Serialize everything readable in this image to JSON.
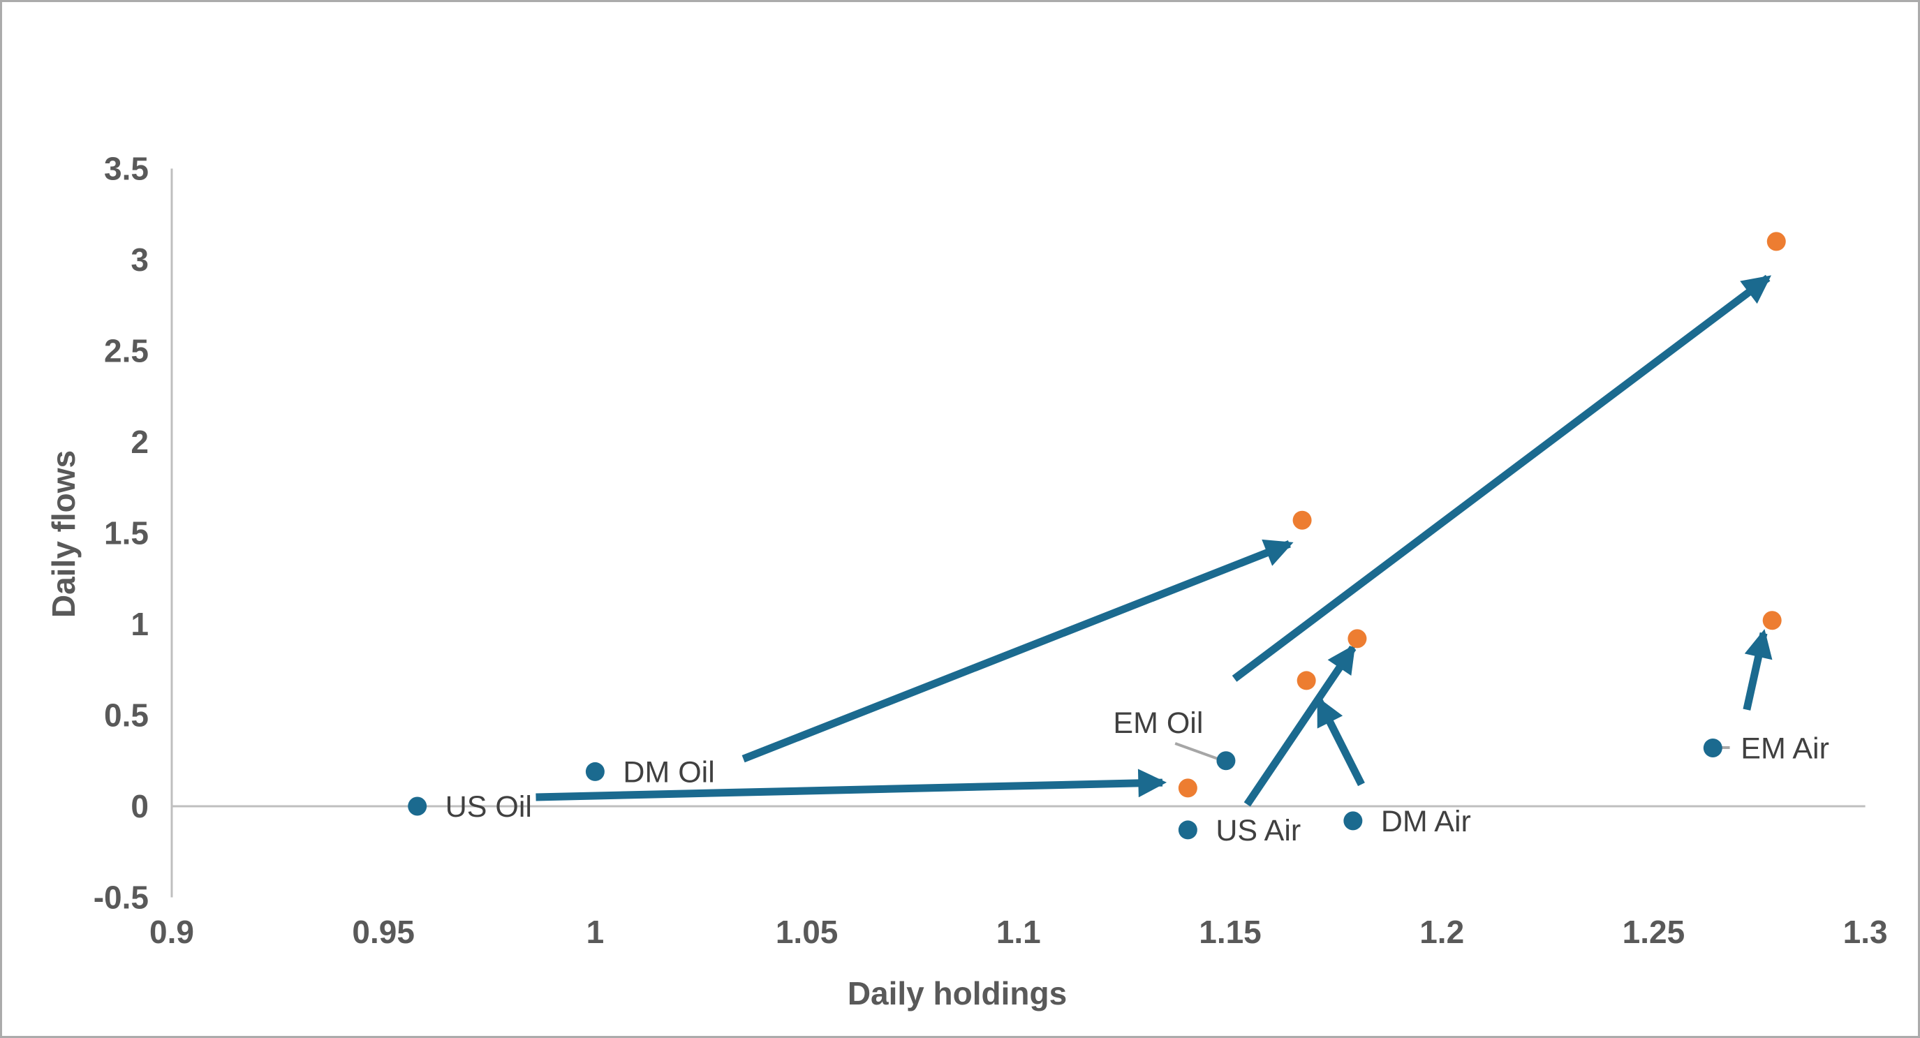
{
  "page": {
    "background": "#FFFFFF",
    "border_color": "#ABABAB"
  },
  "colors": {
    "start_series": "#1B6A8F",
    "end_series": "#ED7D31",
    "arrow": "#1B6A8F",
    "axis_line": "#BFBFBF",
    "tick_label": "#595959",
    "point_label": "#404040",
    "axis_title": "#595959",
    "leader_line": "#A6A6A6"
  },
  "chart_data": {
    "type": "scatter",
    "title": "",
    "x_axis": {
      "title": "Daily holdings",
      "min": 0.9,
      "max": 1.3,
      "tick_step": 0.05,
      "tick_labels": [
        "0.9",
        "0.95",
        "1",
        "1.05",
        "1.1",
        "1.15",
        "1.2",
        "1.25",
        "1.3"
      ]
    },
    "y_axis": {
      "title": "Daily flows",
      "min": -0.5,
      "max": 3.5,
      "tick_step": 0.5,
      "tick_labels": [
        "-0.5",
        "0",
        "0.5",
        "1",
        "1.5",
        "2",
        "2.5",
        "3",
        "3.5"
      ]
    },
    "grid": "off",
    "zero_line": true,
    "legend": "none",
    "series": [
      {
        "name": "start",
        "marker": "circle",
        "points": [
          {
            "label": "US Oil",
            "x": 0.958,
            "y": 0.0,
            "label_side": "right"
          },
          {
            "label": "DM Oil",
            "x": 1.0,
            "y": 0.19,
            "label_side": "right"
          },
          {
            "label": "EM Oil",
            "x": 1.149,
            "y": 0.25,
            "label_side": "custom",
            "label_x": 1.133,
            "label_y": 0.46
          },
          {
            "label": "US Air",
            "x": 1.14,
            "y": -0.13,
            "label_side": "right"
          },
          {
            "label": "DM Air",
            "x": 1.179,
            "y": -0.08,
            "label_side": "right"
          },
          {
            "label": "EM Air",
            "x": 1.264,
            "y": 0.32,
            "label_side": "right"
          }
        ]
      },
      {
        "name": "end",
        "marker": "circle",
        "points": [
          {
            "label": "",
            "x": 1.14,
            "y": 0.1
          },
          {
            "label": "",
            "x": 1.167,
            "y": 1.57
          },
          {
            "label": "",
            "x": 1.18,
            "y": 0.92
          },
          {
            "label": "",
            "x": 1.168,
            "y": 0.69
          },
          {
            "label": "",
            "x": 1.279,
            "y": 3.1
          },
          {
            "label": "",
            "x": 1.278,
            "y": 1.02
          }
        ]
      }
    ],
    "arrows": [
      {
        "name": "us-oil-flow",
        "from": {
          "x": 0.986,
          "y": 0.05
        },
        "to": {
          "x": 1.134,
          "y": 0.13
        }
      },
      {
        "name": "dm-oil-flow",
        "from": {
          "x": 1.035,
          "y": 0.26
        },
        "to": {
          "x": 1.164,
          "y": 1.44
        }
      },
      {
        "name": "em-oil-flow",
        "from": {
          "x": 1.151,
          "y": 0.7
        },
        "to": {
          "x": 1.277,
          "y": 2.9
        }
      },
      {
        "name": "us-air-flow",
        "from": {
          "x": 1.154,
          "y": 0.01
        },
        "to": {
          "x": 1.179,
          "y": 0.87
        }
      },
      {
        "name": "dm-air-flow",
        "from": {
          "x": 1.181,
          "y": 0.12
        },
        "to": {
          "x": 1.171,
          "y": 0.58
        }
      },
      {
        "name": "em-air-flow",
        "from": {
          "x": 1.272,
          "y": 0.53
        },
        "to": {
          "x": 1.276,
          "y": 0.95
        }
      }
    ],
    "leader_lines": [
      {
        "name": "em-oil-leader",
        "x1": 1.137,
        "y1": 0.345,
        "x2": 1.148,
        "y2": 0.253
      },
      {
        "name": "em-air-leader",
        "x1": 1.266,
        "y1": 0.322,
        "x2": 1.268,
        "y2": 0.322
      }
    ]
  }
}
